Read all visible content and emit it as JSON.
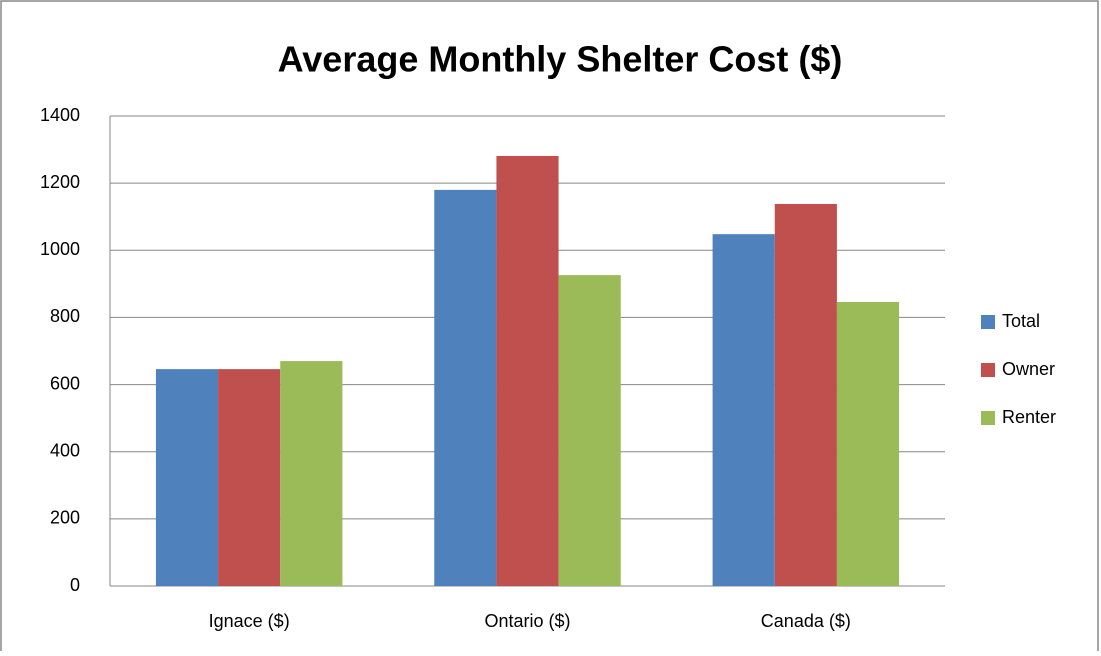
{
  "chart_data": {
    "type": "bar",
    "title": "Average Monthly Shelter Cost ($)",
    "categories": [
      "Ignace ($)",
      "Ontario ($)",
      "Canada ($)"
    ],
    "series": [
      {
        "name": "Total",
        "color": "#4f81bd",
        "values": [
          646,
          1180,
          1048
        ]
      },
      {
        "name": "Owner",
        "color": "#c0504d",
        "values": [
          646,
          1281,
          1138
        ]
      },
      {
        "name": "Renter",
        "color": "#9bbb59",
        "values": [
          670,
          926,
          846
        ]
      }
    ],
    "ylim": [
      0,
      1400
    ],
    "yticks": [
      0,
      200,
      400,
      600,
      800,
      1000,
      1200,
      1400
    ],
    "grid": true,
    "legend": "right"
  }
}
